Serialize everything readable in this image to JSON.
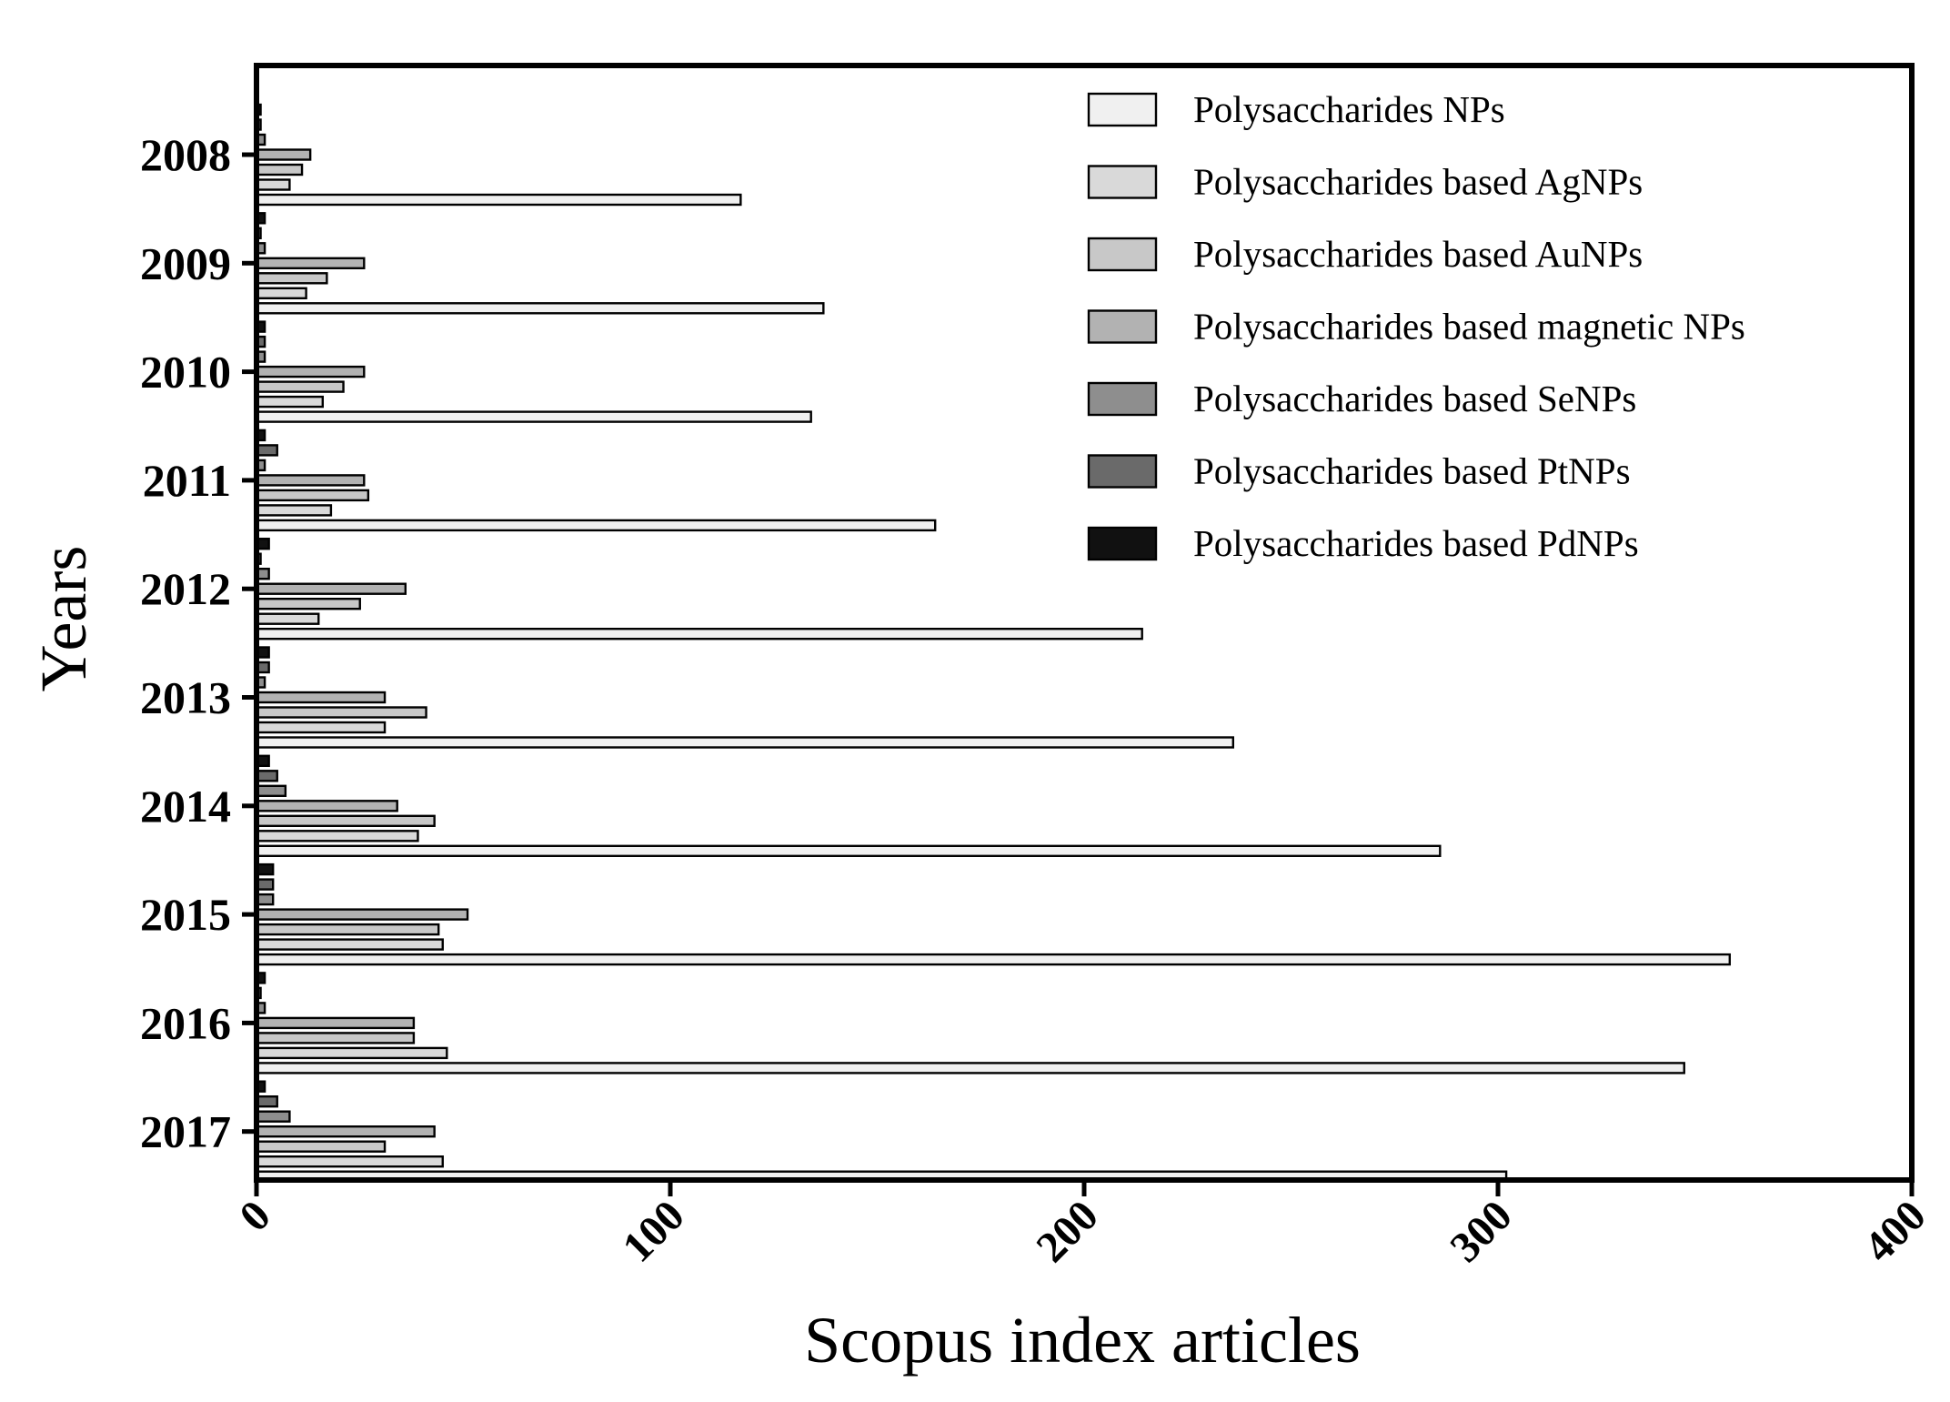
{
  "chart_data": {
    "type": "bar",
    "orientation": "horizontal",
    "xlabel": "Scopus index articles",
    "ylabel": "Years",
    "xlim": [
      0,
      400
    ],
    "xticks": [
      "0",
      "100",
      "200",
      "300",
      "400"
    ],
    "categories": [
      "2008",
      "2009",
      "2010",
      "2011",
      "2012",
      "2013",
      "2014",
      "2015",
      "2016",
      "2017"
    ],
    "grid": false,
    "legend_position": "top-right",
    "series": [
      {
        "name": "Polysaccharides NPs",
        "color": "#f0f0f0",
        "values": [
          117,
          137,
          134,
          164,
          214,
          236,
          286,
          356,
          345,
          302
        ]
      },
      {
        "name": "Polysaccharides based AgNPs",
        "color": "#d9d9d9",
        "values": [
          8,
          12,
          16,
          18,
          15,
          31,
          39,
          45,
          46,
          45
        ]
      },
      {
        "name": "Polysaccharides based AuNPs",
        "color": "#c8c8c8",
        "values": [
          11,
          17,
          21,
          27,
          25,
          41,
          43,
          44,
          38,
          31
        ]
      },
      {
        "name": "Polysaccharides based magnetic NPs",
        "color": "#b2b2b2",
        "values": [
          13,
          26,
          26,
          26,
          36,
          31,
          34,
          51,
          38,
          43
        ]
      },
      {
        "name": "Polysaccharides based SeNPs",
        "color": "#8e8e8e",
        "values": [
          2,
          2,
          2,
          2,
          3,
          2,
          7,
          4,
          2,
          8
        ]
      },
      {
        "name": "Polysaccharides based PtNPs",
        "color": "#6a6a6a",
        "values": [
          1,
          1,
          2,
          5,
          1,
          3,
          5,
          4,
          1,
          5
        ]
      },
      {
        "name": "Polysaccharides based PdNPs",
        "color": "#111111",
        "values": [
          1,
          2,
          2,
          2,
          3,
          3,
          3,
          4,
          2,
          2
        ]
      }
    ]
  }
}
